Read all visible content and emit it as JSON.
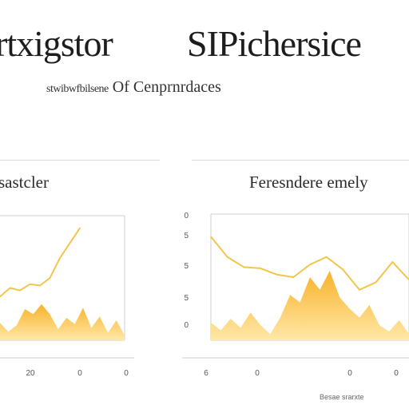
{
  "header": {
    "title_left": "rtxigstor",
    "title_right": "SIPichersice",
    "subtitle_left": "stwibwfbilsene",
    "subtitle_right": "Of Cenprnrdaces"
  },
  "footer": {
    "note": "Besae srarxte"
  },
  "colors": {
    "line": "#f2c64a",
    "fill_top": "#f8b22a",
    "fill_bottom": "#ffe8a8",
    "axis": "#cfcfcf"
  },
  "chart_data": [
    {
      "type": "area",
      "title": "sastcler",
      "line_values": [
        0.35,
        0.42,
        0.4,
        0.45,
        0.44,
        0.5,
        0.66,
        0.78,
        0.9
      ],
      "area_values": [
        0.14,
        0.07,
        0.12,
        0.25,
        0.21,
        0.29,
        0.21,
        0.09,
        0.18,
        0.13,
        0.26,
        0.1,
        0.19,
        0.06,
        0.16,
        0.04
      ],
      "ylim": [
        0,
        1
      ],
      "y_ticks": [],
      "x_ticks": [
        "20",
        "0",
        "0"
      ],
      "grid": false
    },
    {
      "type": "area",
      "title": "Feresndere emely",
      "line_values": [
        0.82,
        0.66,
        0.58,
        0.57,
        0.52,
        0.5,
        0.6,
        0.66,
        0.56,
        0.4,
        0.46,
        0.62,
        0.48
      ],
      "area_values": [
        0.14,
        0.08,
        0.17,
        0.1,
        0.22,
        0.12,
        0.05,
        0.18,
        0.36,
        0.3,
        0.5,
        0.4,
        0.55,
        0.34,
        0.25,
        0.18,
        0.28,
        0.12,
        0.07,
        0.16,
        0.05
      ],
      "ylim": [
        0,
        1
      ],
      "y_ticks": [
        "0",
        "5",
        "5",
        "5",
        "0"
      ],
      "x_ticks": [
        "6",
        "0",
        "0",
        "0"
      ],
      "grid": false
    }
  ]
}
